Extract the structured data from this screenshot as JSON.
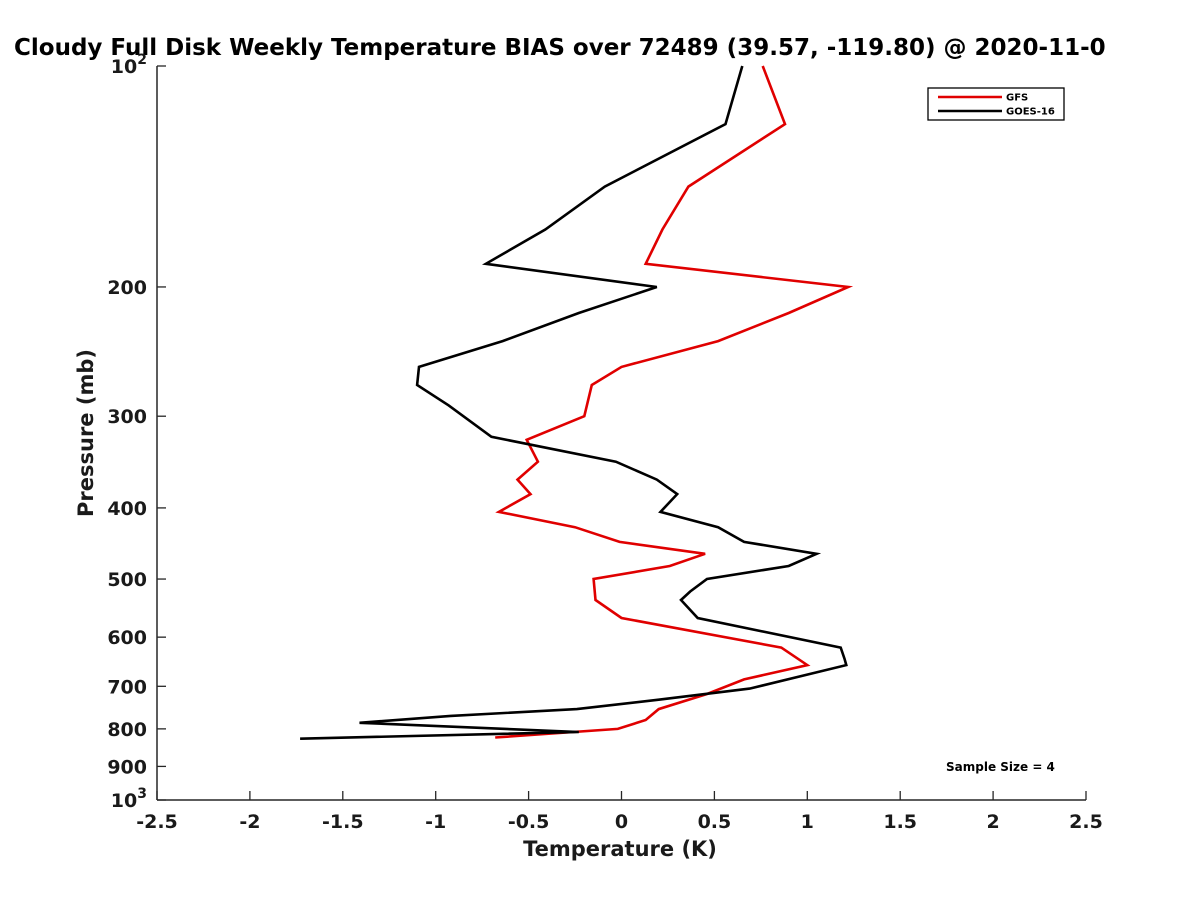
{
  "chart_data": {
    "type": "line",
    "title": "Cloudy Full Disk Weekly Temperature BIAS over 72489 (39.57, -119.80) @ 2020-11-0",
    "xlabel": "Temperature (K)",
    "ylabel": "Pressure (mb)",
    "xlim": [
      -2.5,
      2.5
    ],
    "ylim": [
      100,
      1000
    ],
    "y_scale": "log",
    "y_reversed": true,
    "grid": false,
    "legend_position": "top-right",
    "x_ticks": [
      "-2.5",
      "-2",
      "-1.5",
      "-1",
      "-0.5",
      "0",
      "0.5",
      "1",
      "1.5",
      "2",
      "2.5"
    ],
    "x_tick_values": [
      -2.5,
      -2,
      -1.5,
      -1,
      -0.5,
      0,
      0.5,
      1,
      1.5,
      2,
      2.5
    ],
    "y_ticks": [
      {
        "value": 100,
        "base": "10",
        "exp": "2"
      },
      {
        "value": 200,
        "base": "200",
        "exp": ""
      },
      {
        "value": 300,
        "base": "300",
        "exp": ""
      },
      {
        "value": 400,
        "base": "400",
        "exp": ""
      },
      {
        "value": 500,
        "base": "500",
        "exp": ""
      },
      {
        "value": 600,
        "base": "600",
        "exp": ""
      },
      {
        "value": 700,
        "base": "700",
        "exp": ""
      },
      {
        "value": 800,
        "base": "800",
        "exp": ""
      },
      {
        "value": 900,
        "base": "900",
        "exp": ""
      },
      {
        "value": 1000,
        "base": "10",
        "exp": "3"
      }
    ],
    "series": [
      {
        "name": "GFS",
        "color": "#e00000",
        "points": [
          [
            0.76,
            100
          ],
          [
            0.88,
            120
          ],
          [
            0.36,
            146
          ],
          [
            0.22,
            167
          ],
          [
            0.13,
            186
          ],
          [
            1.22,
            200
          ],
          [
            0.9,
            217
          ],
          [
            0.52,
            237
          ],
          [
            0.0,
            257
          ],
          [
            -0.16,
            272
          ],
          [
            -0.2,
            300
          ],
          [
            -0.51,
            323
          ],
          [
            -0.45,
            346
          ],
          [
            -0.56,
            366
          ],
          [
            -0.49,
            383
          ],
          [
            -0.66,
            405
          ],
          [
            -0.25,
            425
          ],
          [
            -0.01,
            445
          ],
          [
            0.45,
            462
          ],
          [
            0.26,
            480
          ],
          [
            -0.15,
            500
          ],
          [
            -0.14,
            534
          ],
          [
            0.0,
            565
          ],
          [
            0.86,
            620
          ],
          [
            1.0,
            655
          ],
          [
            0.66,
            685
          ],
          [
            0.46,
            717
          ],
          [
            0.2,
            752
          ],
          [
            0.13,
            778
          ],
          [
            -0.02,
            800
          ],
          [
            -0.68,
            822
          ]
        ]
      },
      {
        "name": "GOES-16",
        "color": "#000000",
        "points": [
          [
            0.65,
            100
          ],
          [
            0.56,
            120
          ],
          [
            -0.09,
            146
          ],
          [
            -0.41,
            167
          ],
          [
            -0.73,
            186
          ],
          [
            0.19,
            200
          ],
          [
            -0.23,
            217
          ],
          [
            -0.64,
            237
          ],
          [
            -1.09,
            257
          ],
          [
            -1.1,
            272
          ],
          [
            -0.93,
            290
          ],
          [
            -0.7,
            320
          ],
          [
            -0.03,
            346
          ],
          [
            0.19,
            366
          ],
          [
            0.3,
            383
          ],
          [
            0.21,
            405
          ],
          [
            0.52,
            425
          ],
          [
            0.66,
            445
          ],
          [
            1.05,
            462
          ],
          [
            0.9,
            480
          ],
          [
            0.46,
            500
          ],
          [
            0.37,
            520
          ],
          [
            0.32,
            534
          ],
          [
            0.41,
            565
          ],
          [
            1.18,
            620
          ],
          [
            1.2,
            642
          ],
          [
            1.21,
            655
          ],
          [
            0.69,
            705
          ],
          [
            0.2,
            730
          ],
          [
            -0.24,
            752
          ],
          [
            -0.92,
            768
          ],
          [
            -1.41,
            785
          ],
          [
            -0.23,
            808
          ],
          [
            -1.73,
            825
          ]
        ]
      }
    ],
    "annotations": [
      "Sample Size = 4"
    ]
  }
}
